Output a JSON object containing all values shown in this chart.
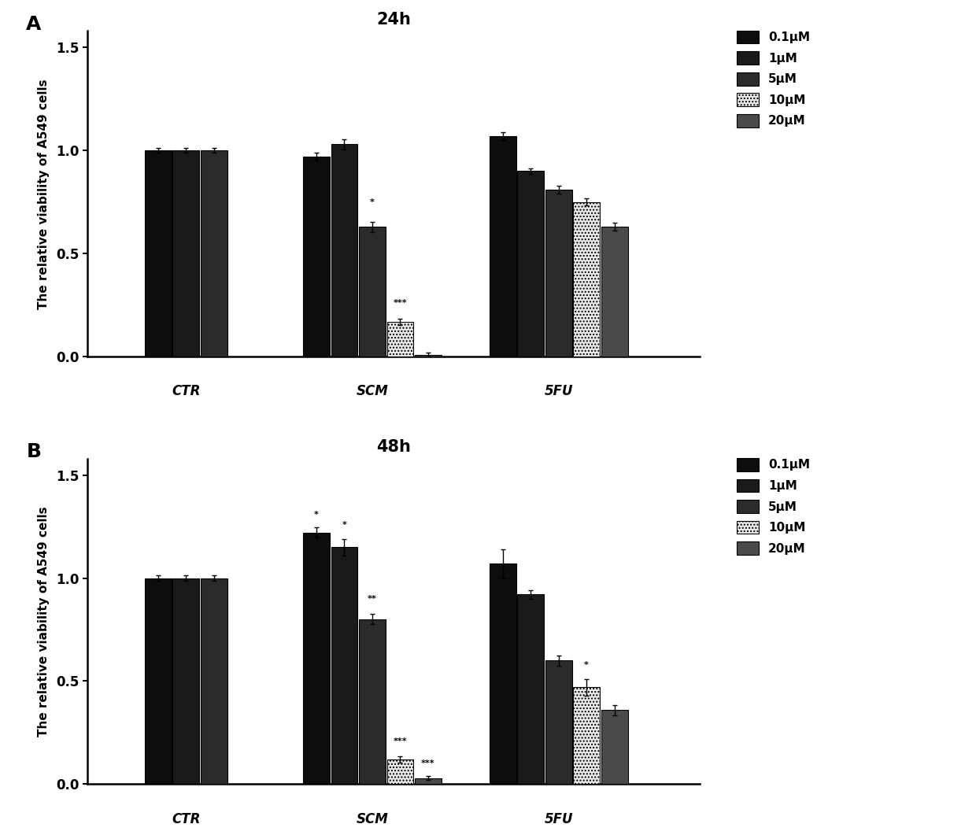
{
  "panel_A": {
    "title": "24h",
    "groups": [
      "CTR",
      "SCM",
      "5FU"
    ],
    "values": {
      "CTR": [
        1.0,
        1.0,
        1.0
      ],
      "SCM": [
        0.97,
        1.03,
        0.63,
        0.17,
        0.01
      ],
      "5FU": [
        1.07,
        0.9,
        0.81,
        0.75,
        0.63
      ]
    },
    "errors": {
      "CTR": [
        0.012,
        0.012,
        0.012
      ],
      "SCM": [
        0.018,
        0.025,
        0.025,
        0.015,
        0.008
      ],
      "5FU": [
        0.02,
        0.015,
        0.02,
        0.018,
        0.018
      ]
    },
    "significance": {
      "SCM": [
        null,
        null,
        "*",
        "***",
        null
      ],
      "5FU": [
        null,
        null,
        null,
        null,
        null
      ]
    },
    "sig_positions": {
      "SCM": [
        null,
        null,
        0.71,
        0.22,
        null
      ],
      "5FU": [
        null,
        null,
        null,
        0.8,
        null
      ]
    }
  },
  "panel_B": {
    "title": "48h",
    "groups": [
      "CTR",
      "SCM",
      "5FU"
    ],
    "values": {
      "CTR": [
        1.0,
        1.0,
        1.0
      ],
      "SCM": [
        1.22,
        1.15,
        0.8,
        0.12,
        0.03
      ],
      "5FU": [
        1.07,
        0.92,
        0.6,
        0.47,
        0.36
      ]
    },
    "errors": {
      "CTR": [
        0.012,
        0.012,
        0.012
      ],
      "SCM": [
        0.025,
        0.04,
        0.025,
        0.015,
        0.008
      ],
      "5FU": [
        0.07,
        0.02,
        0.025,
        0.04,
        0.025
      ]
    },
    "significance": {
      "SCM": [
        "*",
        "*",
        "**",
        "***",
        "***"
      ],
      "5FU": [
        null,
        null,
        null,
        "*",
        null
      ]
    },
    "sig_positions": {
      "SCM": [
        1.27,
        1.22,
        0.86,
        0.17,
        0.06
      ],
      "5FU": [
        null,
        null,
        null,
        0.54,
        null
      ]
    }
  },
  "bar_colors": [
    "#0d0d0d",
    "#1a1a1a",
    "#2b2b2b",
    "#e8e8e8",
    "#4a4a4a"
  ],
  "bar_width": 0.1,
  "bar_spacing": 0.005,
  "group_centers": [
    0.25,
    0.95,
    1.65
  ],
  "ctr_offsets": [
    -0.105,
    0.0,
    0.105
  ],
  "scm_5fu_offsets": [
    -0.21,
    -0.105,
    0.0,
    0.105,
    0.21
  ],
  "xlim": [
    -0.12,
    2.18
  ],
  "ylim": [
    0,
    1.58
  ],
  "yticks": [
    0.0,
    0.5,
    1.0,
    1.5
  ],
  "ylabel": "The relative viability of A549 cells",
  "group_labels": [
    "CTR",
    "SCM",
    "5FU"
  ],
  "legend_labels": [
    "0.1μM",
    "1μM",
    "5μM",
    "10μM",
    "20μM"
  ],
  "legend_colors": [
    "#0d0d0d",
    "#1a1a1a",
    "#2b2b2b",
    "#e8e8e8",
    "#4a4a4a"
  ],
  "panel_labels": [
    "A",
    "B"
  ]
}
